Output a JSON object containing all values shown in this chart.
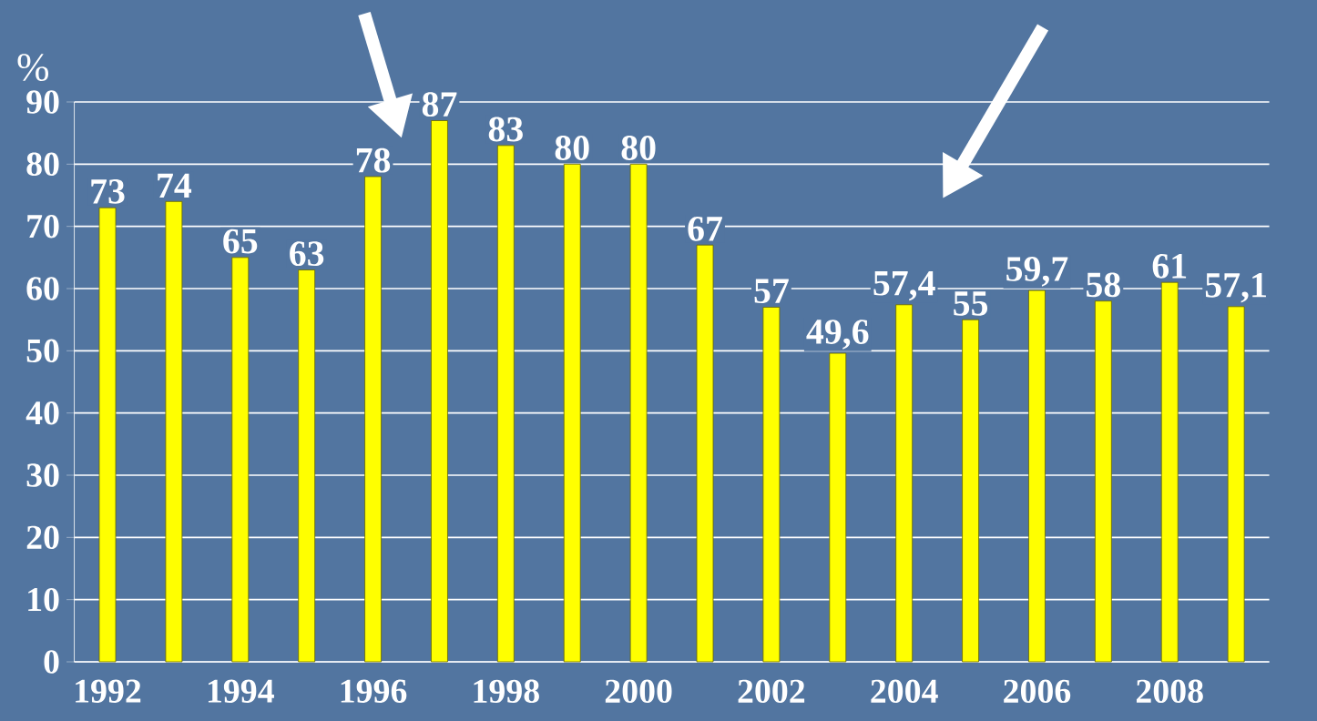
{
  "chart_data": {
    "type": "bar",
    "ylabel": "%",
    "categories": [
      "1992",
      null,
      "1994",
      null,
      "1996",
      null,
      "1998",
      null,
      "2000",
      null,
      "2002",
      null,
      "2004",
      null,
      "2006",
      null,
      "2008",
      null
    ],
    "values": [
      73,
      74,
      65,
      63,
      78,
      87,
      83,
      80,
      80,
      67,
      57,
      49.6,
      57.4,
      55,
      59.7,
      58,
      61,
      57.1
    ],
    "value_labels": [
      "73",
      "74",
      "65",
      "63",
      "78",
      "87",
      "83",
      "80",
      "80",
      "67",
      "57",
      "49,6",
      "57,4",
      "55",
      "59,7",
      "58",
      "61",
      "57,1"
    ],
    "color": "#ffff00",
    "ylim": [
      0,
      90
    ],
    "yticks": [
      0,
      10,
      20,
      30,
      40,
      50,
      60,
      70,
      80,
      90
    ],
    "grid": "y"
  }
}
